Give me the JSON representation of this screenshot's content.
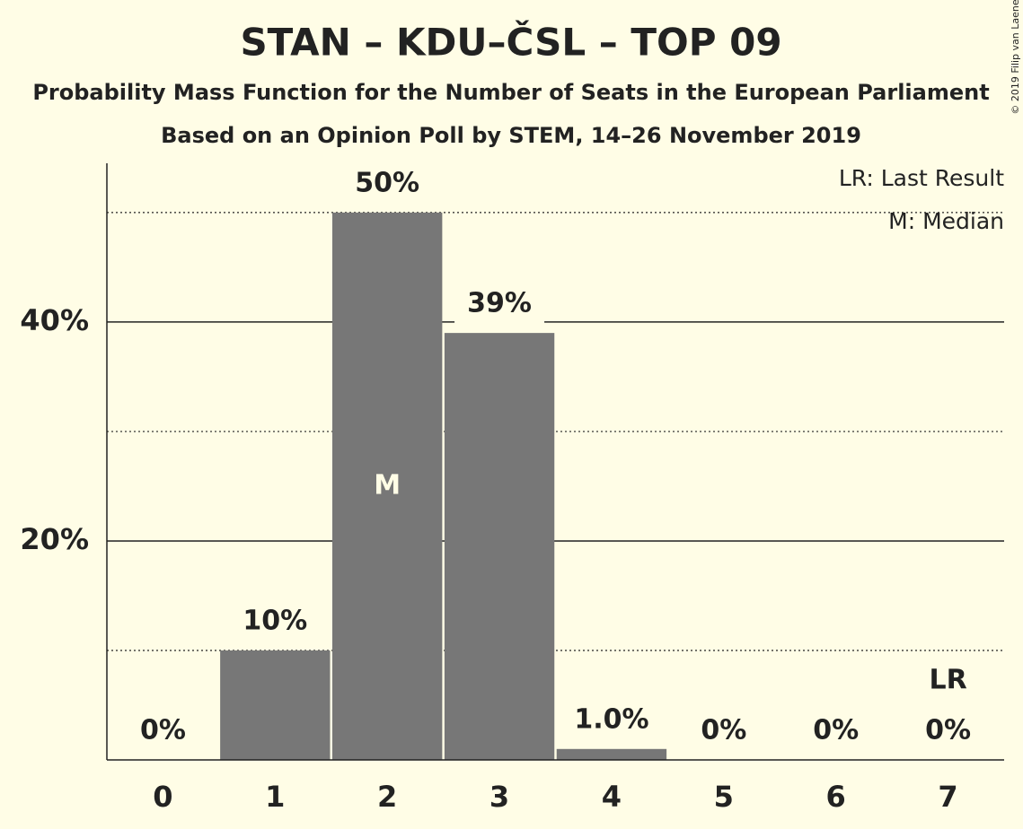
{
  "chart_data": {
    "type": "bar",
    "title": "STAN – KDU–ČSL – TOP 09",
    "subtitle": "Probability Mass Function for the Number of Seats in the European Parliament",
    "subtitle2": "Based on an Opinion Poll by STEM, 14–26 November 2019",
    "copyright": "© 2019 Filip van Laenen",
    "categories": [
      "0",
      "1",
      "2",
      "3",
      "4",
      "5",
      "6",
      "7"
    ],
    "values": [
      0,
      10,
      50,
      39,
      1.0,
      0,
      0,
      0
    ],
    "value_labels": [
      "0%",
      "10%",
      "50%",
      "39%",
      "1.0%",
      "0%",
      "0%",
      "0%"
    ],
    "color": "#777777",
    "ylim": [
      0,
      54.5
    ],
    "yticks": [
      {
        "value": 20,
        "label": "20%"
      },
      {
        "value": 40,
        "label": "40%"
      }
    ],
    "minor_yticks": [
      10,
      30,
      50
    ],
    "grid": true,
    "median": {
      "category": "2",
      "label": "M"
    },
    "last_result": {
      "category": "7",
      "label": "LR"
    },
    "legend": [
      "LR: Last Result",
      "M: Median"
    ]
  }
}
